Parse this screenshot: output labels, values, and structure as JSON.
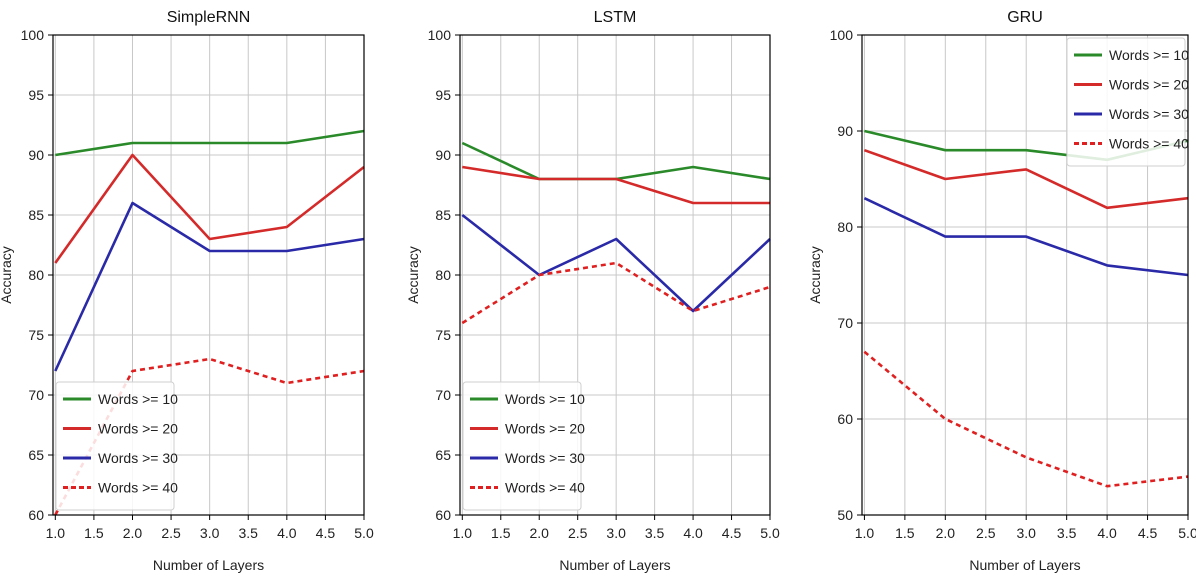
{
  "chart_data": [
    {
      "type": "line",
      "title": "SimpleRNN",
      "xlabel": "Number of Layers",
      "ylabel": "Accuracy",
      "x": [
        1.0,
        2.0,
        3.0,
        4.0,
        5.0
      ],
      "xlim": [
        0.97,
        5.0
      ],
      "xticks": [
        "1.0",
        "1.5",
        "2.0",
        "2.5",
        "3.0",
        "3.5",
        "4.0",
        "4.5",
        "5.0"
      ],
      "ylim": [
        60,
        100
      ],
      "yticks": [
        "60",
        "65",
        "70",
        "75",
        "80",
        "85",
        "90",
        "95",
        "100"
      ],
      "grid": true,
      "legend_position": "bottom-left",
      "series": [
        {
          "name": "Words >= 10",
          "color": "#2a8a2a",
          "dashed": false,
          "values": [
            90,
            91,
            91,
            91,
            92
          ]
        },
        {
          "name": "Words >= 20",
          "color": "#d42a2a",
          "dashed": false,
          "values": [
            81,
            90,
            83,
            84,
            89
          ]
        },
        {
          "name": "Words >= 30",
          "color": "#2a2aa8",
          "dashed": false,
          "values": [
            72,
            86,
            82,
            82,
            83
          ]
        },
        {
          "name": "Words >= 40",
          "color": "#e02020",
          "dashed": true,
          "values": [
            60,
            72,
            73,
            71,
            72
          ]
        }
      ]
    },
    {
      "type": "line",
      "title": "LSTM",
      "xlabel": "Number of Layers",
      "ylabel": "Accuracy",
      "x": [
        1.0,
        2.0,
        3.0,
        4.0,
        5.0
      ],
      "xlim": [
        0.97,
        5.0
      ],
      "xticks": [
        "1.0",
        "1.5",
        "2.0",
        "2.5",
        "3.0",
        "3.5",
        "4.0",
        "4.5",
        "5.0"
      ],
      "ylim": [
        60,
        100
      ],
      "yticks": [
        "60",
        "65",
        "70",
        "75",
        "80",
        "85",
        "90",
        "95",
        "100"
      ],
      "grid": true,
      "legend_position": "bottom-left",
      "series": [
        {
          "name": "Words >= 10",
          "color": "#2a8a2a",
          "dashed": false,
          "values": [
            91,
            88,
            88,
            89,
            88
          ]
        },
        {
          "name": "Words >= 20",
          "color": "#d42a2a",
          "dashed": false,
          "values": [
            89,
            88,
            88,
            86,
            86
          ]
        },
        {
          "name": "Words >= 30",
          "color": "#2a2aa8",
          "dashed": false,
          "values": [
            85,
            80,
            83,
            77,
            83
          ]
        },
        {
          "name": "Words >= 40",
          "color": "#e02020",
          "dashed": true,
          "values": [
            76,
            80,
            81,
            77,
            79
          ]
        }
      ]
    },
    {
      "type": "line",
      "title": "GRU",
      "xlabel": "Number of Layers",
      "ylabel": "Accuracy",
      "x": [
        1.0,
        2.0,
        3.0,
        4.0,
        5.0
      ],
      "xlim": [
        0.97,
        5.0
      ],
      "xticks": [
        "1.0",
        "1.5",
        "2.0",
        "2.5",
        "3.0",
        "3.5",
        "4.0",
        "4.5",
        "5.0"
      ],
      "ylim": [
        50,
        100
      ],
      "yticks": [
        "50",
        "60",
        "70",
        "80",
        "90",
        "100"
      ],
      "grid": true,
      "legend_position": "top-right",
      "series": [
        {
          "name": "Words >= 10",
          "color": "#2a8a2a",
          "dashed": false,
          "values": [
            90,
            88,
            88,
            87,
            89
          ]
        },
        {
          "name": "Words >= 20",
          "color": "#d42a2a",
          "dashed": false,
          "values": [
            88,
            85,
            86,
            82,
            83
          ]
        },
        {
          "name": "Words >= 30",
          "color": "#2a2aa8",
          "dashed": false,
          "values": [
            83,
            79,
            79,
            76,
            75
          ]
        },
        {
          "name": "Words >= 40",
          "color": "#e02020",
          "dashed": true,
          "values": [
            67,
            60,
            56,
            53,
            54
          ]
        }
      ]
    }
  ]
}
